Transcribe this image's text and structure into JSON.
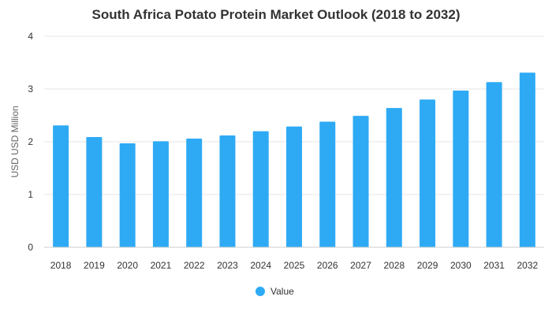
{
  "chart_data": {
    "type": "bar",
    "title": "South Africa Potato Protein Market Outlook (2018 to 2032)",
    "xlabel": "",
    "ylabel": "USD USD Million",
    "ylim": [
      0,
      4
    ],
    "yticks": [
      0,
      1,
      2,
      3,
      4
    ],
    "grid": true,
    "legend_position": "bottom",
    "categories": [
      "2018",
      "2019",
      "2020",
      "2021",
      "2022",
      "2023",
      "2024",
      "2025",
      "2026",
      "2027",
      "2028",
      "2029",
      "2030",
      "2031",
      "2032"
    ],
    "series": [
      {
        "name": "Value",
        "color": "#2eaaf5",
        "values": [
          2.31,
          2.09,
          1.97,
          2.01,
          2.06,
          2.12,
          2.2,
          2.29,
          2.38,
          2.49,
          2.64,
          2.8,
          2.97,
          3.13,
          3.31
        ]
      }
    ]
  }
}
